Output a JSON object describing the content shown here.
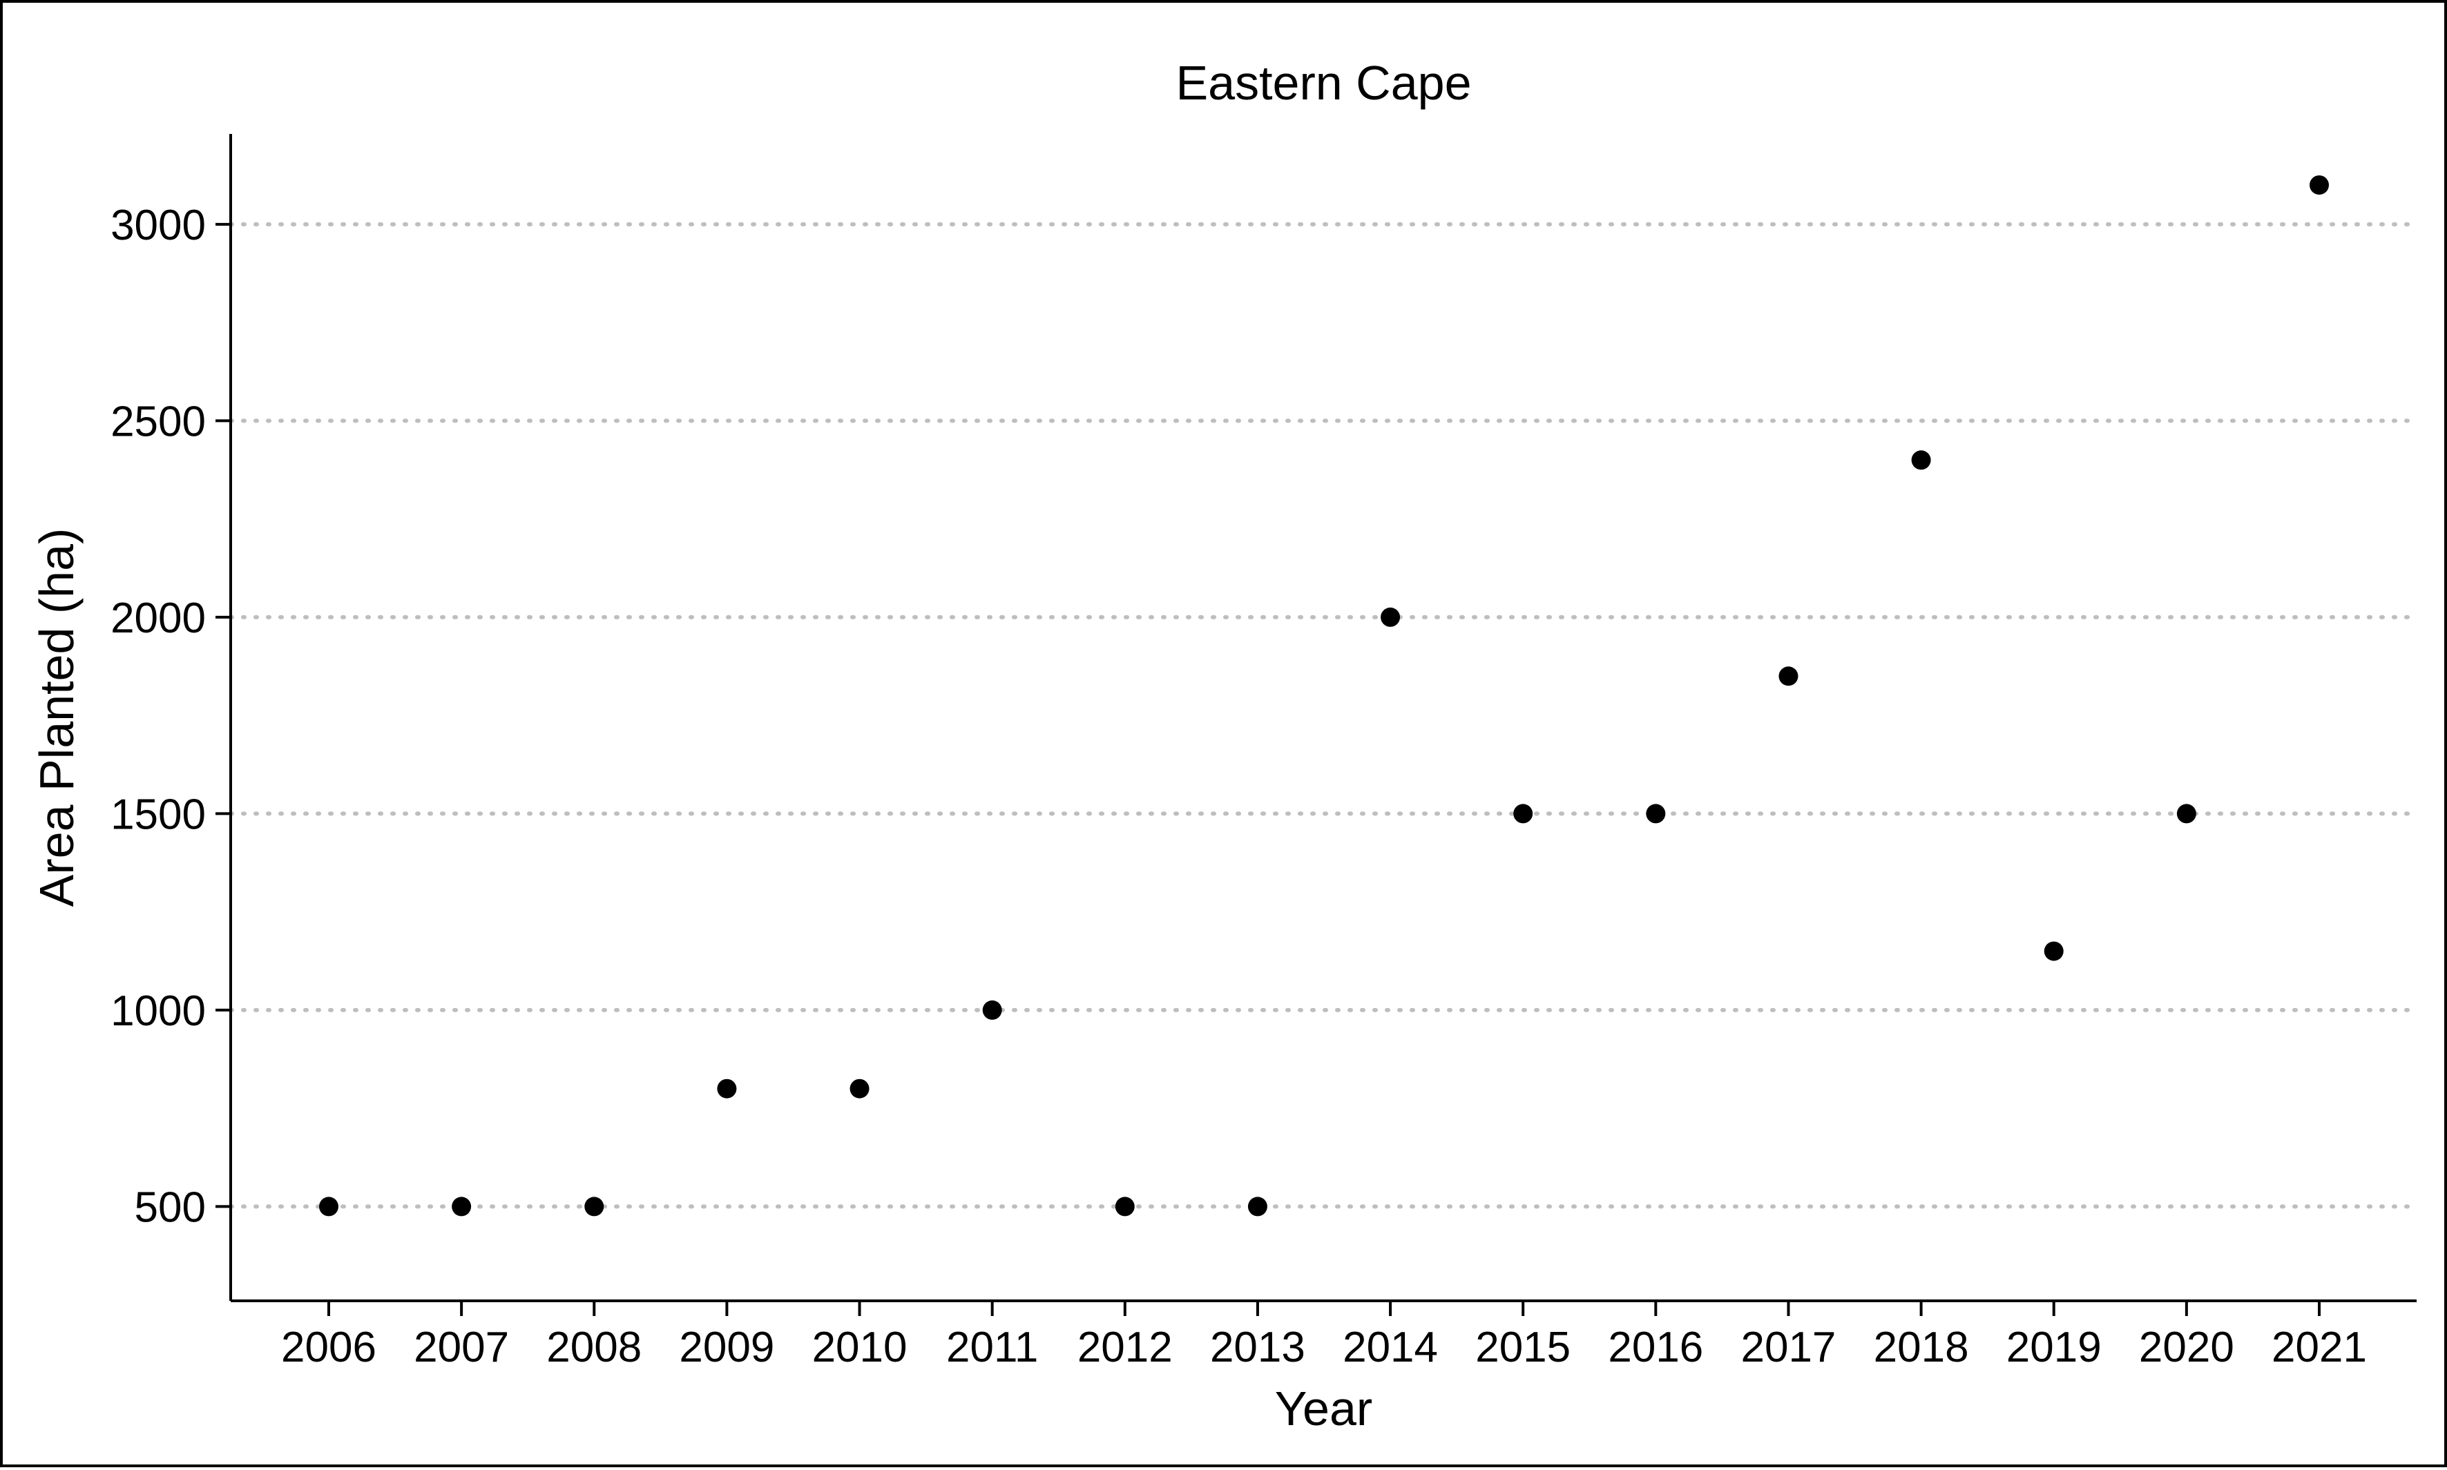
{
  "chart_data": {
    "type": "scatter",
    "title": "Eastern Cape",
    "xlabel": "Year",
    "ylabel": "Area Planted (ha)",
    "x": [
      "2006",
      "2007",
      "2008",
      "2009",
      "2010",
      "2011",
      "2012",
      "2013",
      "2014",
      "2015",
      "2016",
      "2017",
      "2018",
      "2019",
      "2020",
      "2021"
    ],
    "y": [
      500,
      500,
      500,
      800,
      800,
      1000,
      500,
      500,
      2000,
      1500,
      1500,
      1850,
      2400,
      1150,
      1500,
      3100
    ],
    "yticks": [
      500,
      1000,
      1500,
      2000,
      2500,
      3000
    ],
    "ylim": [
      260,
      3230
    ],
    "grid": "horizontal dotted major gridlines",
    "legend": "none",
    "colors": {
      "point": "#000000",
      "grid": "#bebebe",
      "axis": "#000000",
      "background": "#ffffff"
    }
  }
}
